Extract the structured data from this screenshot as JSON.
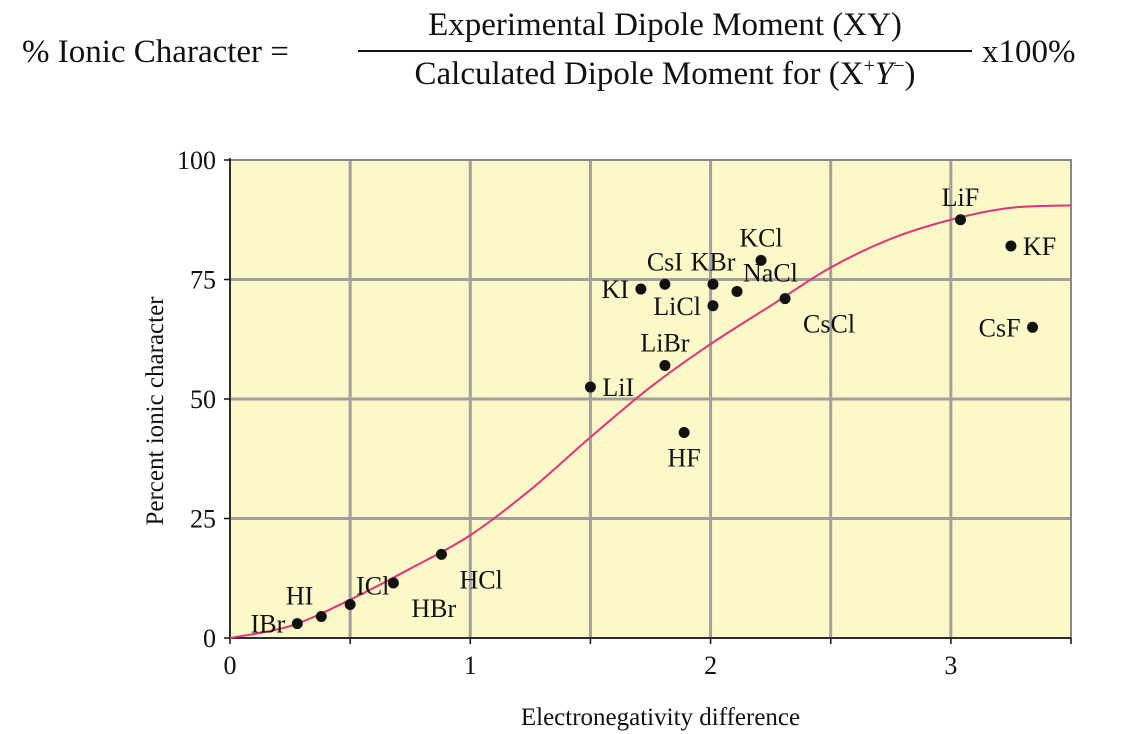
{
  "formula": {
    "lhs": "% Ionic Character =",
    "numerator": "Experimental Dipole Moment (XY)",
    "denominator_prefix": "Calculated Dipole Moment for (X",
    "denominator_sup1": "+",
    "denominator_y": "Y",
    "denominator_sup2": "−",
    "denominator_suffix": ")",
    "rhs": "x100%"
  },
  "chart_data": {
    "type": "scatter",
    "title": "",
    "xlabel": "Electronegativity difference",
    "ylabel": "Percent ionic character",
    "xlim": [
      0,
      3.5
    ],
    "ylim": [
      0,
      100
    ],
    "xticks": [
      0,
      1,
      2,
      3
    ],
    "yticks": [
      0,
      25,
      50,
      75,
      100
    ],
    "xtick_labels": [
      "0",
      "1",
      "2",
      "3"
    ],
    "ytick_labels": [
      "0",
      "25",
      "50",
      "75",
      "100"
    ],
    "grid": true,
    "background_color": "#fdf8c8",
    "curve_color": "#e0357a",
    "point_color": "#111111",
    "curve": {
      "x": [
        0,
        0.25,
        0.5,
        0.75,
        1.0,
        1.25,
        1.5,
        1.75,
        2.0,
        2.25,
        2.5,
        2.75,
        3.0,
        3.25,
        3.5
      ],
      "y": [
        0,
        2.5,
        8,
        14.5,
        21.5,
        31,
        42,
        52.5,
        61.5,
        69.5,
        77.5,
        83.5,
        87.5,
        90,
        90.5
      ]
    },
    "points": [
      {
        "label": "IBr",
        "x": 0.28,
        "y": 3,
        "label_pos": "left"
      },
      {
        "label": "HI",
        "x": 0.38,
        "y": 4.5,
        "label_pos": "upper-left"
      },
      {
        "label": "ICl",
        "x": 0.5,
        "y": 7,
        "label_pos": "upper-right"
      },
      {
        "label": "HBr",
        "x": 0.68,
        "y": 11.5,
        "label_pos": "lower-right"
      },
      {
        "label": "HCl",
        "x": 0.88,
        "y": 17.5,
        "label_pos": "lower-right"
      },
      {
        "label": "LiI",
        "x": 1.5,
        "y": 52.5,
        "label_pos": "right"
      },
      {
        "label": "KI",
        "x": 1.71,
        "y": 73,
        "label_pos": "left"
      },
      {
        "label": "CsI",
        "x": 1.81,
        "y": 74,
        "label_pos": "above"
      },
      {
        "label": "LiBr",
        "x": 1.81,
        "y": 57,
        "label_pos": "above"
      },
      {
        "label": "HF",
        "x": 1.89,
        "y": 43,
        "label_pos": "below"
      },
      {
        "label": "KBr",
        "x": 2.01,
        "y": 74,
        "label_pos": "above"
      },
      {
        "label": "LiCl",
        "x": 2.01,
        "y": 69.5,
        "label_pos": "left"
      },
      {
        "label": "NaCl",
        "x": 2.11,
        "y": 72.5,
        "label_pos": "upper-right"
      },
      {
        "label": "KCl",
        "x": 2.21,
        "y": 79,
        "label_pos": "above"
      },
      {
        "label": "CsCl",
        "x": 2.31,
        "y": 71,
        "label_pos": "lower-right"
      },
      {
        "label": "LiF",
        "x": 3.04,
        "y": 87.5,
        "label_pos": "above"
      },
      {
        "label": "KF",
        "x": 3.25,
        "y": 82,
        "label_pos": "right"
      },
      {
        "label": "CsF",
        "x": 3.34,
        "y": 65,
        "label_pos": "left"
      }
    ]
  }
}
